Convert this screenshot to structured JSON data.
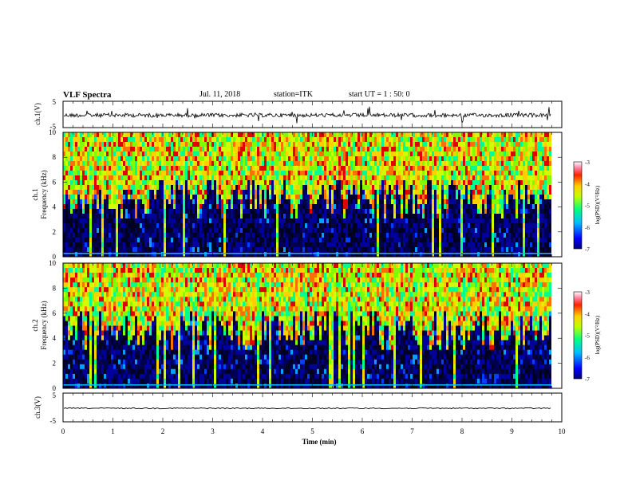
{
  "header": {
    "title": "VLF Spectra",
    "date": "Jul. 11, 2018",
    "station": "station=ITK",
    "start": "start UT = 1 : 50: 0"
  },
  "chart_data": [
    {
      "type": "line",
      "id": "ch1-waveform",
      "ylabel": "ch.1(V)",
      "yticks": [
        "5",
        "-5"
      ],
      "ylim": [
        -5,
        5
      ],
      "xlim": [
        0,
        10
      ]
    },
    {
      "type": "heatmap",
      "id": "ch1-spectrogram",
      "ylabel": [
        "ch.1",
        "Frequency (kHz)"
      ],
      "yticks": [
        "0",
        "2",
        "4",
        "6",
        "8",
        "10"
      ],
      "ylim": [
        0,
        10
      ],
      "xlim": [
        0,
        10
      ],
      "colorbar": {
        "label": "log(PSD)(V²/Hz)",
        "ticks": [
          "-3",
          "-4",
          "-5",
          "-6",
          "-7"
        ],
        "range": [
          -7,
          -3
        ]
      }
    },
    {
      "type": "heatmap",
      "id": "ch2-spectrogram",
      "ylabel": [
        "ch.2",
        "Frequency (kHz)"
      ],
      "yticks": [
        "0",
        "2",
        "4",
        "6",
        "8",
        "10"
      ],
      "ylim": [
        0,
        10
      ],
      "xlim": [
        0,
        10
      ],
      "colorbar": {
        "label": "log(PSD)(V²/Hz)",
        "ticks": [
          "-3",
          "-4",
          "-5",
          "-6",
          "-7"
        ],
        "range": [
          -7,
          -3
        ]
      }
    },
    {
      "type": "line",
      "id": "ch3-waveform",
      "ylabel": "ch.3(V)",
      "yticks": [
        "5",
        "-5"
      ],
      "ylim": [
        -5,
        5
      ],
      "xlim": [
        0,
        10
      ],
      "xlabel": "Time (min)",
      "xticks": [
        "0",
        "1",
        "2",
        "3",
        "4",
        "5",
        "6",
        "7",
        "8",
        "9",
        "10"
      ]
    }
  ],
  "colors": {
    "background": "#ffffff",
    "axes": "#000000",
    "spectrogram_low": "#000033",
    "spectrogram_high": "#cc0000"
  }
}
